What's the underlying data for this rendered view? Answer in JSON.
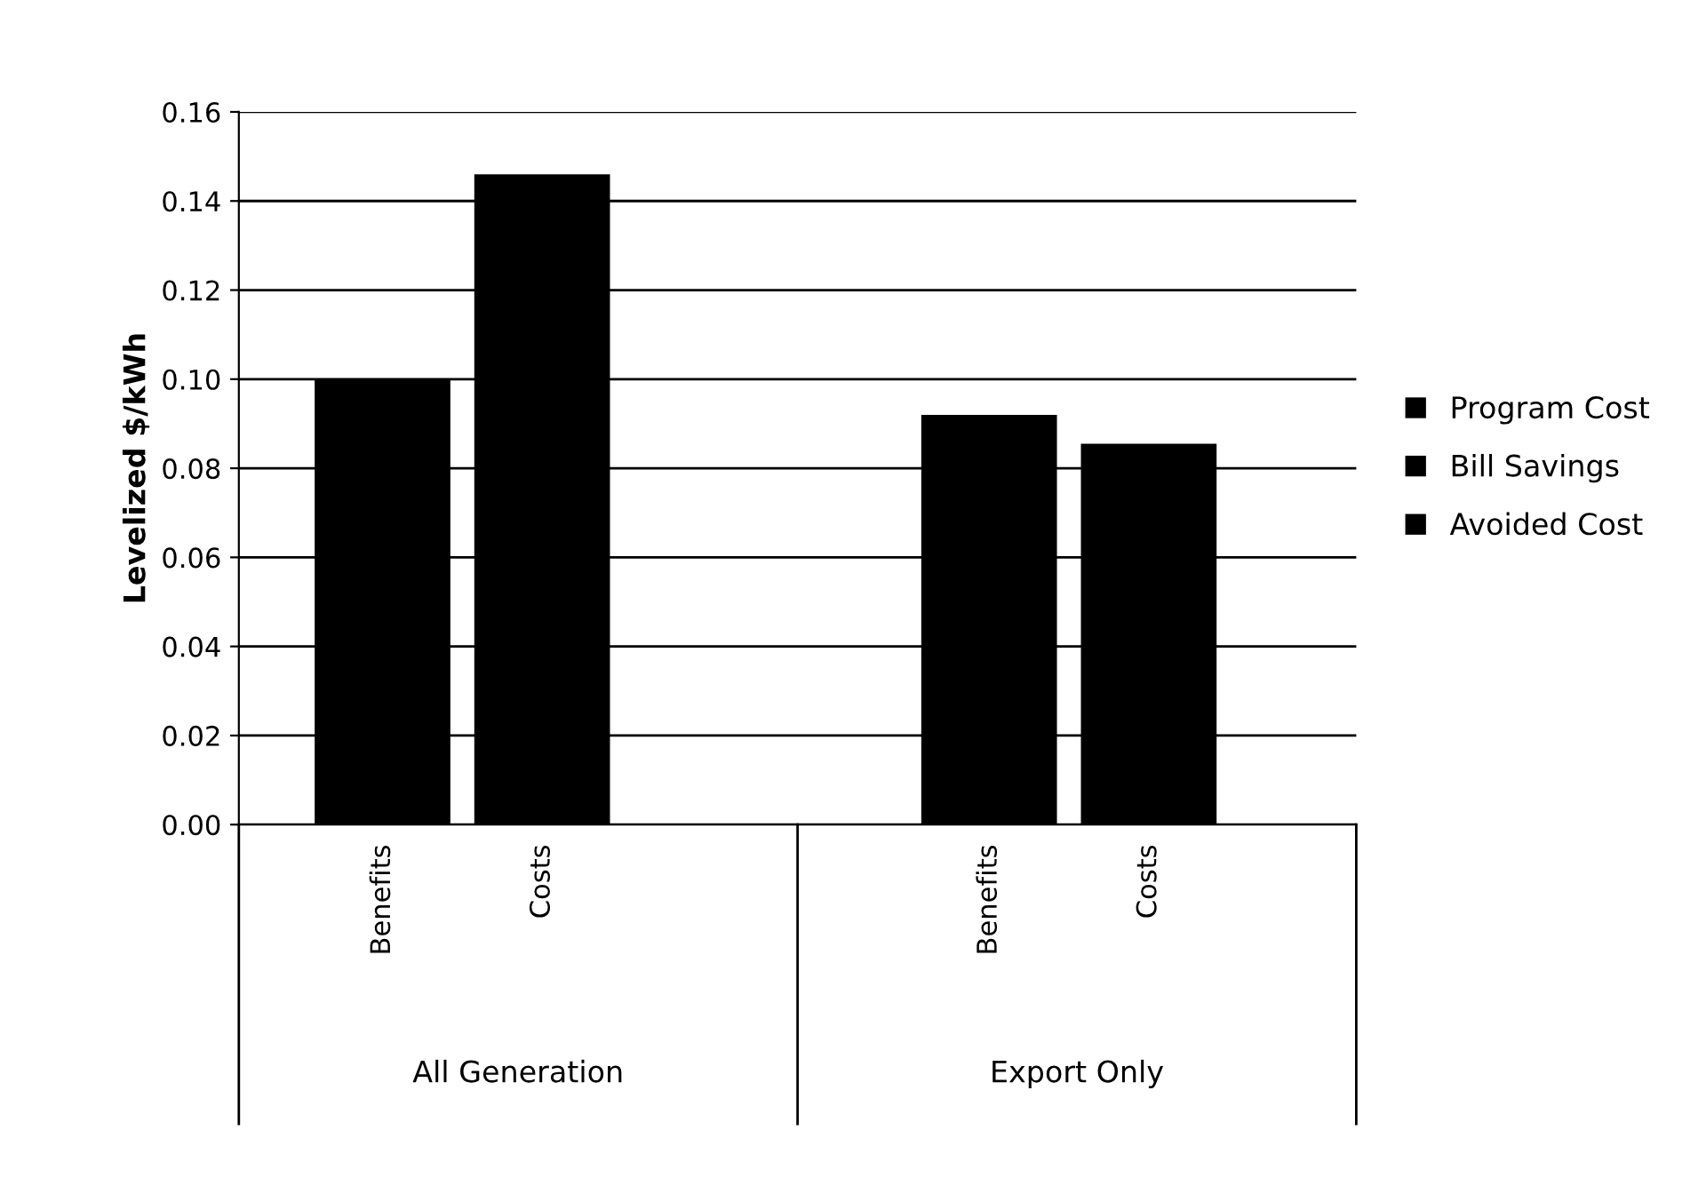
{
  "chart_data": {
    "type": "bar",
    "ylabel": "Levelized $/kWh",
    "categories": [
      "Benefits",
      "Costs",
      "Benefits",
      "Costs"
    ],
    "annotations": [
      "All Generation",
      "Export Only"
    ],
    "series": [
      {
        "name": "Program Cost",
        "color": "#000000",
        "values": [
          null,
          0.146,
          null,
          0.0855
        ]
      },
      {
        "name": "Bill Savings",
        "color": "#000000",
        "values": [
          0.1,
          null,
          null,
          null
        ]
      },
      {
        "name": "Avoided Cost",
        "color": "#000000",
        "values": [
          null,
          null,
          0.092,
          null
        ]
      }
    ],
    "ylim": [
      0,
      0.16
    ],
    "yticks": [
      {
        "value": 0,
        "label": "0.00"
      },
      {
        "value": 0.02,
        "label": "0.02"
      },
      {
        "value": 0.04,
        "label": "0.04"
      },
      {
        "value": 0.06,
        "label": "0.06"
      },
      {
        "value": 0.08,
        "label": "0.08"
      },
      {
        "value": 0.1,
        "label": "0.10"
      },
      {
        "value": 0.12,
        "label": "0.12"
      },
      {
        "value": 0.14,
        "label": "0.14"
      },
      {
        "value": 0.16,
        "label": "0.16"
      }
    ],
    "grid": "y",
    "legend": "right"
  }
}
